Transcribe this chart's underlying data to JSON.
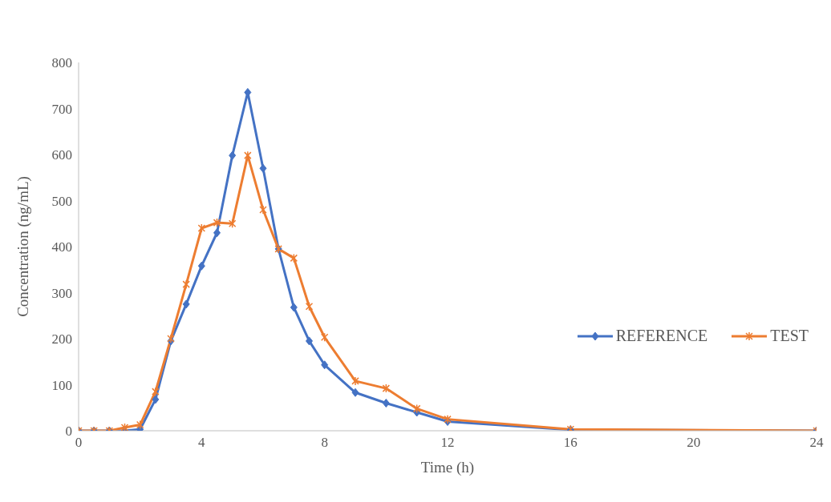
{
  "chart_data": {
    "type": "line",
    "xlabel": "Time (h)",
    "ylabel": "Concentration (ng/mL)",
    "x": [
      0,
      0.5,
      1,
      1.5,
      2,
      2.5,
      3,
      3.5,
      4,
      4.5,
      5,
      5.5,
      6,
      6.5,
      7,
      7.5,
      8,
      9,
      10,
      11,
      12,
      16,
      24
    ],
    "series": [
      {
        "name": "REFERENCE",
        "color": "#4472c4",
        "marker": "diamond",
        "values": [
          0,
          0,
          0,
          0,
          3,
          68,
          195,
          275,
          358,
          430,
          598,
          735,
          570,
          395,
          268,
          195,
          143,
          83,
          60,
          40,
          20,
          2,
          0
        ]
      },
      {
        "name": "TEST",
        "color": "#ed7d31",
        "marker": "cross",
        "values": [
          0,
          0,
          0,
          7,
          13,
          85,
          200,
          318,
          440,
          452,
          450,
          598,
          480,
          395,
          375,
          270,
          203,
          108,
          92,
          48,
          25,
          3,
          0
        ]
      }
    ],
    "xlim": [
      0,
      24
    ],
    "xticks": [
      0,
      4,
      8,
      12,
      16,
      20,
      24
    ],
    "ylim": [
      0,
      800
    ],
    "yticks": [
      0,
      100,
      200,
      300,
      400,
      500,
      600,
      700,
      800
    ],
    "grid": false,
    "legend": "right",
    "line_style": "solid"
  }
}
